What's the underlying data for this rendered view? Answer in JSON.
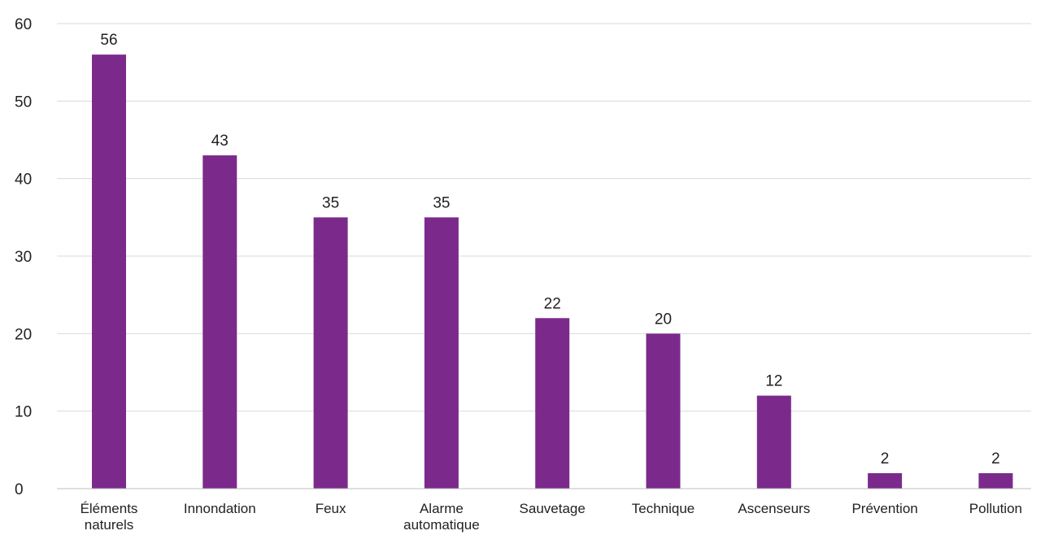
{
  "chart_data": {
    "type": "bar",
    "categories": [
      [
        "Éléments",
        "naturels"
      ],
      [
        "Innondation"
      ],
      [
        "Feux"
      ],
      [
        "Alarme",
        "automatique"
      ],
      [
        "Sauvetage"
      ],
      [
        "Technique"
      ],
      [
        "Ascenseurs"
      ],
      [
        "Prévention"
      ],
      [
        "Pollution"
      ]
    ],
    "values": [
      56,
      43,
      35,
      35,
      22,
      20,
      12,
      2,
      2
    ],
    "ylim": [
      0,
      60
    ],
    "yticks": [
      0,
      10,
      20,
      30,
      40,
      50,
      60
    ],
    "title": "",
    "xlabel": "",
    "ylabel": "",
    "grid": true,
    "legend": "none",
    "bar_color": "#7b2a8c"
  }
}
